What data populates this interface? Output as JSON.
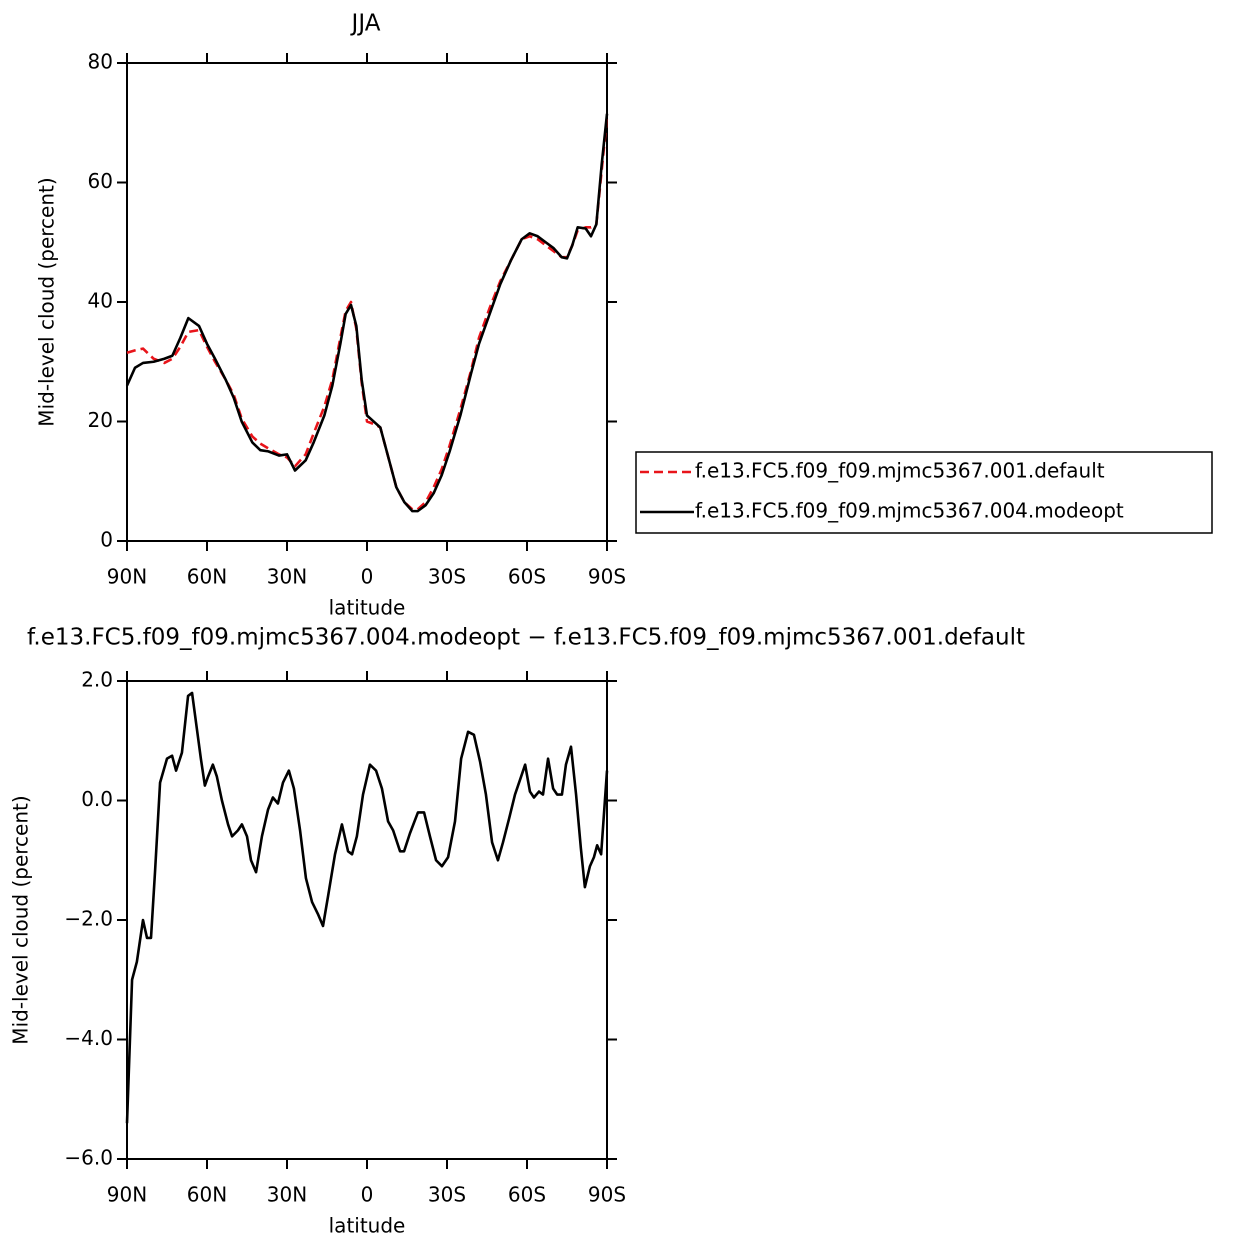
{
  "chart_data": [
    {
      "type": "line",
      "title": "JJA",
      "xlabel": "latitude",
      "ylabel": "Mid-level cloud (percent)",
      "x": [
        90,
        87,
        84,
        80,
        76,
        73,
        70,
        67,
        63,
        60,
        57,
        53,
        50,
        47,
        43,
        40,
        37,
        33,
        30,
        27,
        23,
        20,
        16,
        13,
        10,
        8,
        6,
        4,
        2,
        0,
        -3,
        -5,
        -8,
        -11,
        -14,
        -17,
        -19,
        -22,
        -25,
        -28,
        -31,
        -35,
        -39,
        -42,
        -46,
        -50,
        -54,
        -58,
        -61,
        -64,
        -67,
        -70,
        -73,
        -75,
        -77,
        -79,
        -82,
        -84,
        -86,
        -88,
        -90
      ],
      "series": [
        {
          "name": "f.e13.FC5.f09_f09.mjmc5367.001.default",
          "color": "#e8141a",
          "style": "dashed",
          "values": [
            31.5,
            31.9,
            32.2,
            30.5,
            29.8,
            30.5,
            32.5,
            35,
            35.3,
            32.5,
            30,
            27,
            24.5,
            20.5,
            17.5,
            16.3,
            15.5,
            14.5,
            14,
            12.5,
            14.5,
            18,
            22.5,
            27,
            34,
            38.5,
            40,
            35.5,
            26.5,
            20,
            19.5,
            19,
            14,
            9,
            6.5,
            5.3,
            5.3,
            6.5,
            9,
            12,
            16,
            22,
            28.5,
            34,
            39,
            43.5,
            47,
            50.5,
            51,
            50.5,
            49.5,
            48.5,
            47.5,
            47.5,
            49.5,
            52,
            52.5,
            52.5,
            53,
            62,
            71
          ]
        },
        {
          "name": "f.e13.FC5.f09_f09.mjmc5367.004.modeopt",
          "color": "#000000",
          "style": "solid",
          "values": [
            26,
            29,
            29.8,
            30,
            30.5,
            31,
            34,
            37.3,
            36,
            33,
            30.5,
            27,
            24,
            20,
            16.5,
            15.2,
            15,
            14.3,
            14.5,
            11.8,
            13.5,
            16.5,
            21,
            26,
            33,
            38,
            39.5,
            36,
            27,
            21,
            19.8,
            19,
            14,
            9,
            6.5,
            5,
            5,
            6,
            8,
            11,
            15,
            21,
            28,
            33,
            38,
            43,
            47,
            50.5,
            51.5,
            51,
            50,
            49,
            47.5,
            47.3,
            49.5,
            52.5,
            52.3,
            51,
            53,
            63,
            71.5
          ]
        }
      ],
      "xlim": [
        90,
        -90
      ],
      "xticks": [
        {
          "value": 90,
          "label": "90N"
        },
        {
          "value": 60,
          "label": "60N"
        },
        {
          "value": 30,
          "label": "30N"
        },
        0,
        {
          "value": -30,
          "label": "30S"
        },
        {
          "value": -60,
          "label": "60S"
        },
        {
          "value": -90,
          "label": "90S"
        }
      ],
      "ylim": [
        0,
        80
      ],
      "yticks": [
        0,
        20,
        40,
        60,
        80
      ],
      "legend": "outside-right"
    },
    {
      "type": "line",
      "title": "f.e13.FC5.f09_f09.mjmc5367.004.modeopt − f.e13.FC5.f09_f09.mjmc5367.001.default",
      "xlabel": "latitude",
      "ylabel": "Mid-level cloud (percent)",
      "x": [
        90,
        88.1,
        86.3,
        84,
        82.5,
        81,
        79.5,
        77.6,
        75,
        73.1,
        71.6,
        69.4,
        67.1,
        65.6,
        63.8,
        62.3,
        60.8,
        59.6,
        57.8,
        56.3,
        54.4,
        52.1,
        50.6,
        48.4,
        46.9,
        45,
        43.5,
        41.6,
        39.4,
        37.1,
        35.3,
        33.4,
        31.5,
        29.3,
        27.4,
        25.1,
        22.9,
        20.6,
        18.4,
        16.5,
        14.6,
        12,
        9.4,
        7.1,
        5.6,
        3.8,
        1.5,
        -1.1,
        -3.4,
        -5.6,
        -7.9,
        -9.8,
        -12.4,
        -13.9,
        -16.1,
        -19.1,
        -21.4,
        -23.6,
        -25.9,
        -28.1,
        -30.4,
        -33,
        -35.3,
        -37.9,
        -40.1,
        -42.4,
        -44.6,
        -46.9,
        -49.1,
        -51,
        -53.3,
        -55.5,
        -57.8,
        -59.3,
        -61.1,
        -62.6,
        -64.5,
        -66,
        -67.9,
        -69.8,
        -71.3,
        -73.1,
        -74.6,
        -76.5,
        -78.4,
        -80.2,
        -81.7,
        -83.6,
        -85.1,
        -86.3,
        -87.8,
        -88.9,
        -90
      ],
      "values": [
        -5.4,
        -3.0,
        -2.7,
        -2.0,
        -2.3,
        -2.3,
        -1.2,
        0.3,
        0.7,
        0.75,
        0.5,
        0.8,
        1.75,
        1.8,
        1.2,
        0.7,
        0.25,
        0.4,
        0.6,
        0.4,
        0.0,
        -0.4,
        -0.6,
        -0.5,
        -0.4,
        -0.6,
        -1.0,
        -1.2,
        -0.6,
        -0.15,
        0.05,
        -0.05,
        0.3,
        0.5,
        0.2,
        -0.5,
        -1.3,
        -1.7,
        -1.9,
        -2.1,
        -1.6,
        -0.9,
        -0.4,
        -0.85,
        -0.9,
        -0.6,
        0.1,
        0.6,
        0.5,
        0.2,
        -0.35,
        -0.5,
        -0.85,
        -0.85,
        -0.55,
        -0.2,
        -0.2,
        -0.6,
        -1.0,
        -1.1,
        -0.95,
        -0.35,
        0.7,
        1.15,
        1.1,
        0.65,
        0.1,
        -0.7,
        -1.0,
        -0.7,
        -0.3,
        0.1,
        0.4,
        0.6,
        0.15,
        0.05,
        0.15,
        0.1,
        0.7,
        0.2,
        0.1,
        0.1,
        0.6,
        0.9,
        0.1,
        -0.8,
        -1.45,
        -1.1,
        -0.95,
        -0.75,
        -0.9,
        -0.2,
        0.5
      ],
      "color": "#000000",
      "xlim": [
        90,
        -90
      ],
      "xticks": [
        {
          "value": 90,
          "label": "90N"
        },
        {
          "value": 60,
          "label": "60N"
        },
        {
          "value": 30,
          "label": "30N"
        },
        0,
        {
          "value": -30,
          "label": "30S"
        },
        {
          "value": -60,
          "label": "60S"
        },
        {
          "value": -90,
          "label": "90S"
        }
      ],
      "ylim": [
        -6,
        2
      ],
      "yticks": [
        {
          "value": -6,
          "label": "−6.0"
        },
        {
          "value": -4,
          "label": "−4.0"
        },
        {
          "value": -2,
          "label": "−2.0"
        },
        {
          "value": 0,
          "label": "0.0"
        },
        {
          "value": 2,
          "label": "2.0"
        }
      ]
    }
  ]
}
